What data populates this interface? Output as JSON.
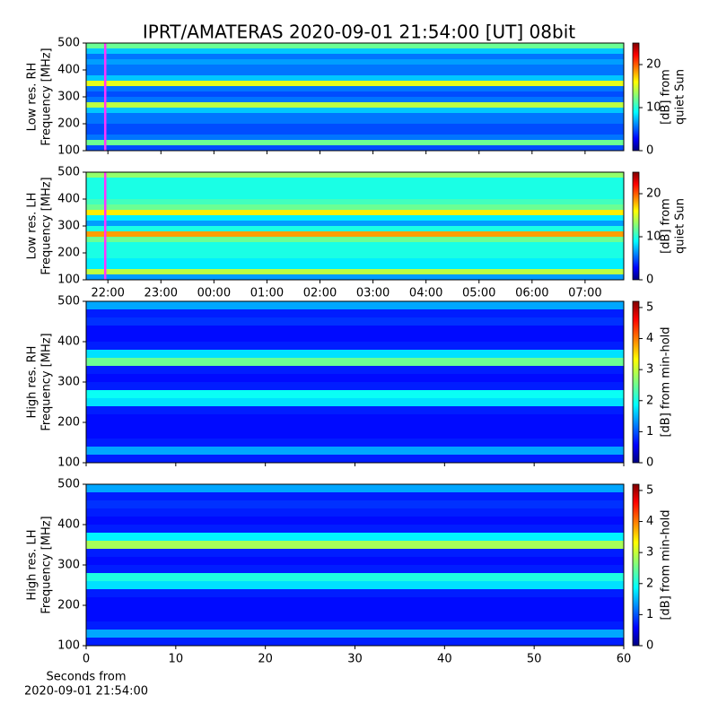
{
  "title": "IPRT/AMATERAS 2020-09-01 21:54:00 [UT]   08bit",
  "chart_data": [
    {
      "type": "heatmap",
      "ylabel": [
        "Low res. RH",
        "Frequency [MHz]"
      ],
      "xlim": [
        21.59,
        31.73
      ],
      "xticks": [
        {
          "value": 22,
          "label": "22:00"
        },
        {
          "value": 23,
          "label": "23:00"
        },
        {
          "value": 24,
          "label": "00:00"
        },
        {
          "value": 25,
          "label": "01:00"
        },
        {
          "value": 26,
          "label": "02:00"
        },
        {
          "value": 27,
          "label": "03:00"
        },
        {
          "value": 28,
          "label": "04:00"
        },
        {
          "value": 29,
          "label": "05:00"
        },
        {
          "value": 30,
          "label": "06:00"
        },
        {
          "value": 31,
          "label": "07:00"
        }
      ],
      "xticklabels": false,
      "marker_x": 21.95,
      "marker_color": "#ff33ff",
      "ylim": [
        100,
        500
      ],
      "yticks": [
        100,
        200,
        300,
        400,
        500
      ],
      "y": [
        110,
        130,
        150,
        170,
        190,
        210,
        230,
        250,
        270,
        290,
        310,
        330,
        350,
        370,
        390,
        410,
        430,
        450,
        470,
        490
      ],
      "values": [
        5,
        12,
        6,
        5,
        5,
        6,
        6,
        8,
        14,
        6,
        5,
        6,
        15,
        8,
        6,
        6,
        7,
        6,
        8,
        12
      ],
      "colorbar": {
        "label": [
          "[dB] from",
          "quiet Sun"
        ],
        "lim": [
          0,
          25
        ],
        "ticks": [
          0,
          10,
          20
        ]
      }
    },
    {
      "type": "heatmap",
      "ylabel": [
        "Low res. LH",
        "Frequency [MHz]"
      ],
      "xlim": [
        21.59,
        31.73
      ],
      "xticks": [
        {
          "value": 22,
          "label": "22:00"
        },
        {
          "value": 23,
          "label": "23:00"
        },
        {
          "value": 24,
          "label": "00:00"
        },
        {
          "value": 25,
          "label": "01:00"
        },
        {
          "value": 26,
          "label": "02:00"
        },
        {
          "value": 27,
          "label": "03:00"
        },
        {
          "value": 28,
          "label": "04:00"
        },
        {
          "value": 29,
          "label": "05:00"
        },
        {
          "value": 30,
          "label": "06:00"
        },
        {
          "value": 31,
          "label": "07:00"
        }
      ],
      "xticklabels": true,
      "marker_x": 21.95,
      "marker_color": "#ff33ff",
      "ylim": [
        100,
        500
      ],
      "yticks": [
        100,
        200,
        300,
        400,
        500
      ],
      "y": [
        110,
        130,
        150,
        170,
        190,
        210,
        230,
        250,
        270,
        290,
        310,
        330,
        350,
        370,
        390,
        410,
        430,
        450,
        470,
        490
      ],
      "values": [
        7,
        14,
        9,
        9,
        10,
        10,
        10,
        12,
        18,
        10,
        7,
        9,
        16,
        12,
        11,
        10,
        10,
        10,
        10,
        13
      ],
      "colorbar": {
        "label": [
          "[dB] from",
          "quiet Sun"
        ],
        "lim": [
          0,
          25
        ],
        "ticks": [
          0,
          10,
          20
        ]
      }
    },
    {
      "type": "heatmap",
      "ylabel": [
        "High res. RH",
        "Frequency [MHz]"
      ],
      "xlim": [
        0,
        60
      ],
      "xticks": [
        0,
        10,
        20,
        30,
        40,
        50,
        60
      ],
      "xticklabels": false,
      "ylim": [
        100,
        500
      ],
      "yticks": [
        100,
        200,
        300,
        400,
        500
      ],
      "y": [
        110,
        130,
        150,
        170,
        190,
        210,
        230,
        250,
        270,
        290,
        310,
        330,
        350,
        370,
        390,
        410,
        430,
        450,
        470,
        490
      ],
      "values": [
        0.8,
        1.5,
        0.8,
        0.7,
        0.7,
        0.7,
        0.8,
        1.8,
        2,
        0.8,
        0.7,
        0.8,
        2.5,
        1.8,
        0.8,
        0.7,
        0.7,
        0.9,
        0.8,
        1.5
      ],
      "colorbar": {
        "label": [
          "[dB] from min-hold"
        ],
        "lim": [
          0,
          5.2
        ],
        "ticks": [
          0,
          1,
          2,
          3,
          4,
          5
        ]
      }
    },
    {
      "type": "heatmap",
      "ylabel": [
        "High res. LH",
        "Frequency [MHz]"
      ],
      "xlim": [
        0,
        60
      ],
      "xticks": [
        0,
        10,
        20,
        30,
        40,
        50,
        60
      ],
      "xticklabels": true,
      "xlabel": [
        "Seconds from",
        "2020-09-01 21:54:00"
      ],
      "ylim": [
        100,
        500
      ],
      "yticks": [
        100,
        200,
        300,
        400,
        500
      ],
      "y": [
        110,
        130,
        150,
        170,
        190,
        210,
        230,
        250,
        270,
        290,
        310,
        330,
        350,
        370,
        390,
        410,
        430,
        450,
        470,
        490
      ],
      "values": [
        0.8,
        1.5,
        0.8,
        0.7,
        0.7,
        0.7,
        0.8,
        1.8,
        2.1,
        0.8,
        0.7,
        0.8,
        2.8,
        1.9,
        0.8,
        0.7,
        0.8,
        0.9,
        0.8,
        1.5
      ],
      "colorbar": {
        "label": [
          "[dB] from min-hold"
        ],
        "lim": [
          0,
          5.2
        ],
        "ticks": [
          0,
          1,
          2,
          3,
          4,
          5
        ]
      }
    }
  ]
}
